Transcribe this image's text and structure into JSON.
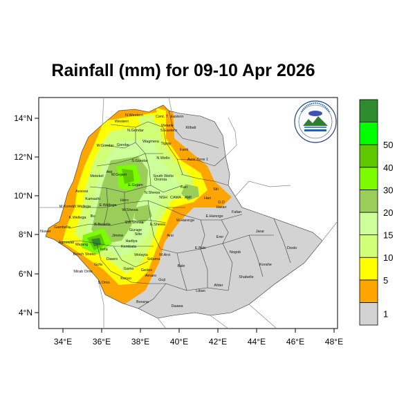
{
  "title": "Rainfall (mm) for 09-10 Apr 2026",
  "axes": {
    "x_ticks": [
      "34°E",
      "36°E",
      "38°E",
      "40°E",
      "42°E",
      "44°E",
      "46°E",
      "48°E"
    ],
    "y_ticks": [
      "14°N",
      "12°N",
      "10°N",
      "8°N",
      "6°N",
      "4°N"
    ]
  },
  "colorbar": {
    "labels": [
      "1",
      "5",
      "10",
      "15",
      "20",
      "30",
      "40",
      "50"
    ],
    "colors": [
      "#d3d3d3",
      "#ffa500",
      "#ffff00",
      "#d2ff78",
      "#ccff99",
      "#9acd5a",
      "#7cfc00",
      "#5fc800",
      "#00ff00",
      "#2e8b2e"
    ]
  },
  "regions": [
    "Western",
    "N.Western",
    "Cent. T",
    "Eastern",
    "Mekele",
    "S.Eastern",
    "Kilbati",
    "N.Gondar",
    "Wagmera",
    "Tigray",
    "Fanti",
    "W.Gondar",
    "Gondar",
    "Awsi Zone 1",
    "S.Gondar",
    "N.Wello",
    "Metekel",
    "Awi",
    "W.Gojam",
    "E.Gojam",
    "South Wello",
    "Oromia",
    "Kari",
    "Siti",
    "Assosa",
    "N.Shewa",
    "NSH",
    "CAMA",
    "AMI",
    "Hari",
    "Harari",
    "Kamashi",
    "Horo",
    "W.Shewa",
    "D.D",
    "Fafan",
    "M.Komo",
    "W.Wellega",
    "E.Wellega",
    "E.Harerge",
    "W.Harerge",
    "K.Wellega",
    "Illu",
    "B.Bedelle",
    "SW.Shewa",
    "E.Shewa",
    "Gambella",
    "Jimma",
    "Arsi",
    "Erer",
    "Jarar",
    "Agnewak",
    "Nuwer",
    "Majang",
    "Kefa",
    "Hadiya",
    "Kembata",
    "Silte",
    "Gurage",
    "W.Arsi",
    "Bale",
    "E.Bale",
    "Nogob",
    "Doolo",
    "Bench Sheko",
    "Dawro",
    "Wolayta",
    "Sidama",
    "Korahe",
    "Shabelle",
    "Mirab Omo",
    "Gofa",
    "Gamo",
    "Gedeo",
    "Afder",
    "S.Omo",
    "Konso",
    "Amaro",
    "Guji",
    "Liban",
    "Borana",
    "Daawa"
  ]
}
